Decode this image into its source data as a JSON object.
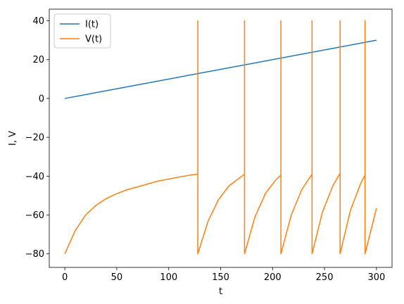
{
  "chart_data": {
    "type": "line",
    "xlabel": "t",
    "ylabel": "I, V",
    "xlim": [
      -15,
      315
    ],
    "ylim": [
      -87,
      46
    ],
    "xticks": [
      0,
      50,
      100,
      150,
      200,
      250,
      300
    ],
    "yticks": [
      -80,
      -60,
      -40,
      -20,
      0,
      20,
      40
    ],
    "grid": false,
    "legend_position": "top-left",
    "series": [
      {
        "name": "I(t)",
        "color": "#1f77b4",
        "x": [
          0,
          300
        ],
        "y": [
          0,
          30
        ]
      },
      {
        "name": "V(t)",
        "color": "#ff7f0e",
        "x": [
          0,
          10,
          20,
          30,
          40,
          50,
          60,
          70,
          80,
          90,
          100,
          110,
          120,
          128,
          128,
          128,
          138,
          148,
          158,
          168,
          173,
          173,
          173,
          183,
          193,
          203,
          208,
          208,
          208,
          218,
          228,
          238,
          238,
          238,
          248,
          258,
          265,
          265,
          265,
          275,
          285,
          289,
          289,
          289,
          300
        ],
        "y": [
          -80,
          -68,
          -60,
          -55,
          -51.5,
          -49,
          -47,
          -45.5,
          -44,
          -42.5,
          -41.5,
          -40.5,
          -39.5,
          -39,
          40,
          -80,
          -63,
          -52,
          -45,
          -41,
          -39,
          40,
          -80,
          -61,
          -49,
          -42,
          -39.5,
          40,
          -80,
          -60,
          -47,
          -39,
          40,
          -80,
          -58.5,
          -45,
          -38.5,
          40,
          -80,
          -57.5,
          -43.5,
          -39.5,
          40,
          -80,
          -56.5
        ]
      }
    ]
  }
}
